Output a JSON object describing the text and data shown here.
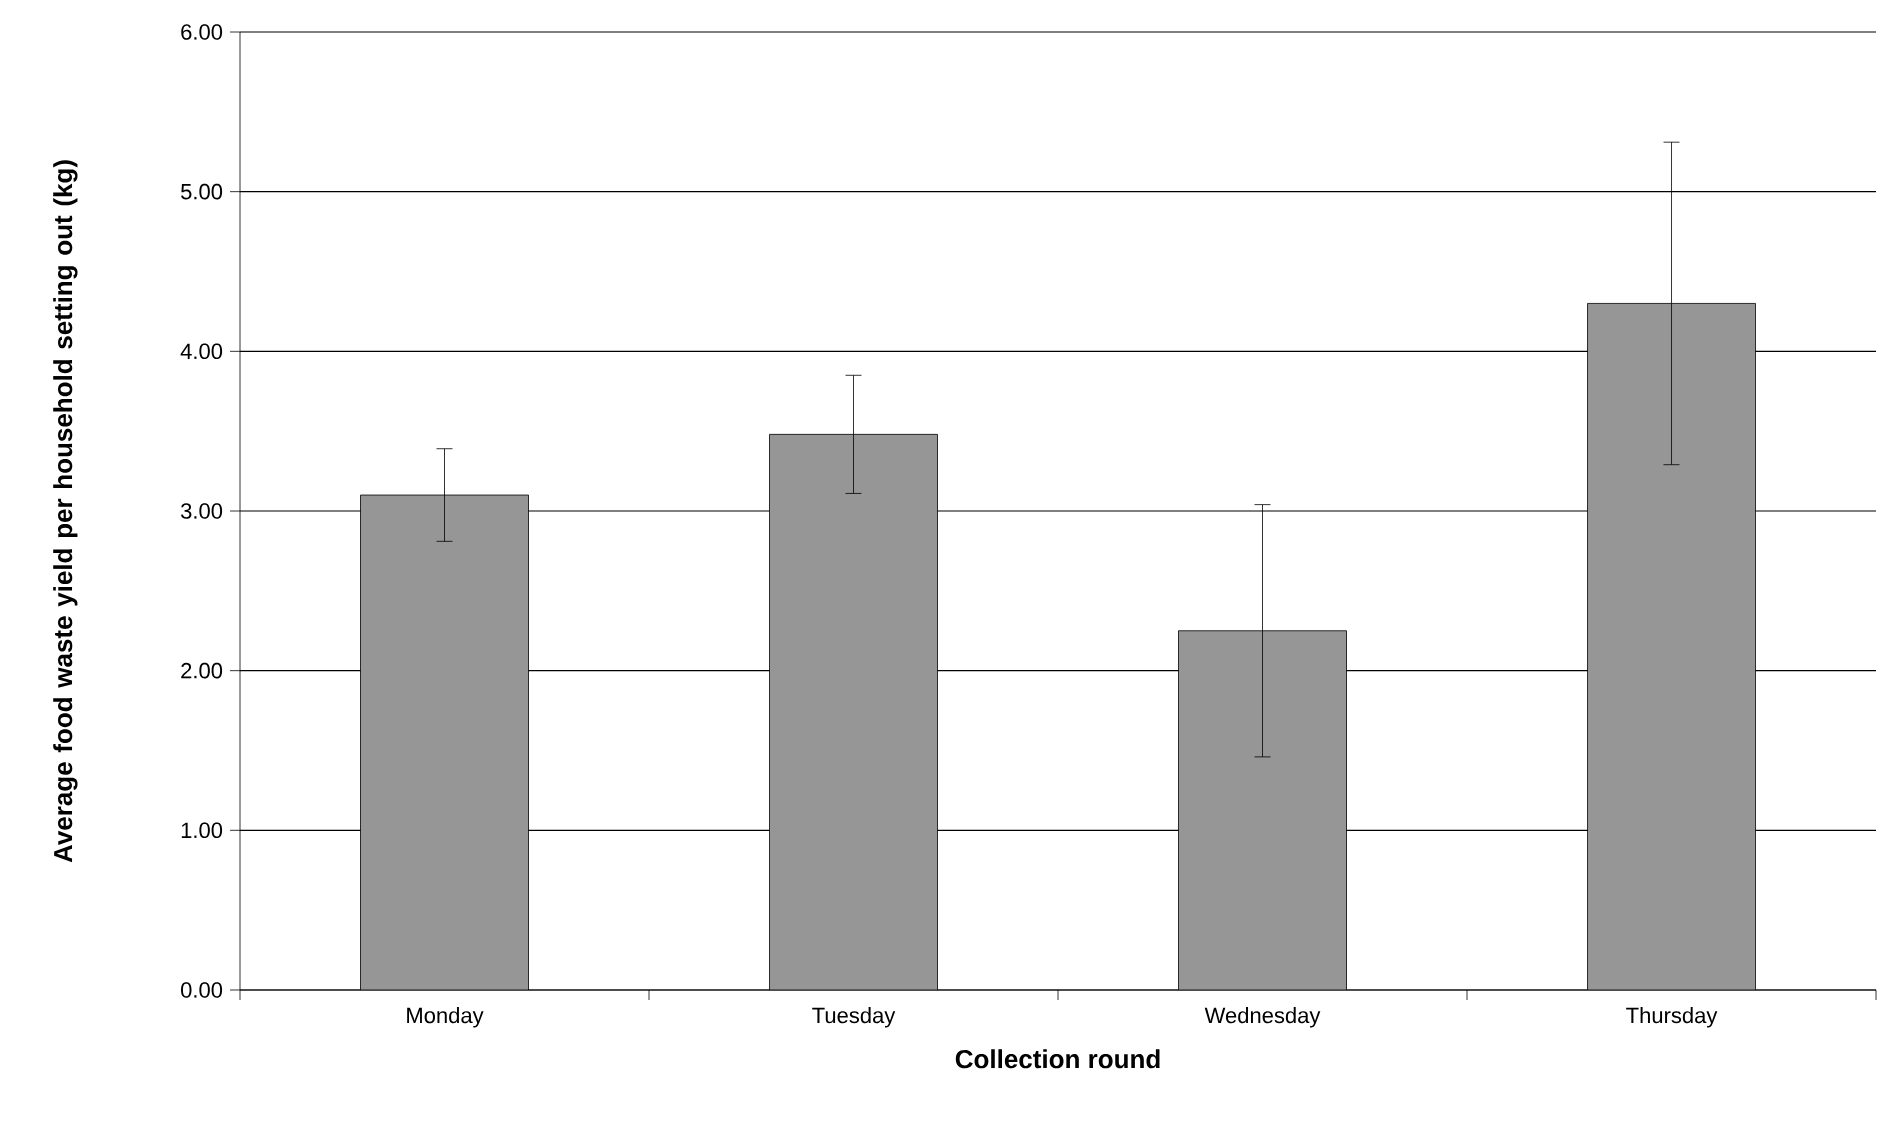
{
  "chart_data": {
    "type": "bar",
    "xlabel": "Collection round",
    "ylabel": "Average food waste yield per household setting out (kg)",
    "categories": [
      "Monday",
      "Tuesday",
      "Wednesday",
      "Thursday"
    ],
    "values": [
      3.1,
      3.48,
      2.25,
      4.3
    ],
    "errors": [
      0.29,
      0.37,
      0.79,
      1.01
    ],
    "color": "#969696",
    "ylim": [
      0,
      6
    ],
    "yticks": [
      {
        "value": 0,
        "label": "0.00"
      },
      {
        "value": 1,
        "label": "1.00"
      },
      {
        "value": 2,
        "label": "2.00"
      },
      {
        "value": 3,
        "label": "3.00"
      },
      {
        "value": 4,
        "label": "4.00"
      },
      {
        "value": 5,
        "label": "5.00"
      },
      {
        "value": 6,
        "label": "6.00"
      }
    ],
    "grid": "y"
  }
}
